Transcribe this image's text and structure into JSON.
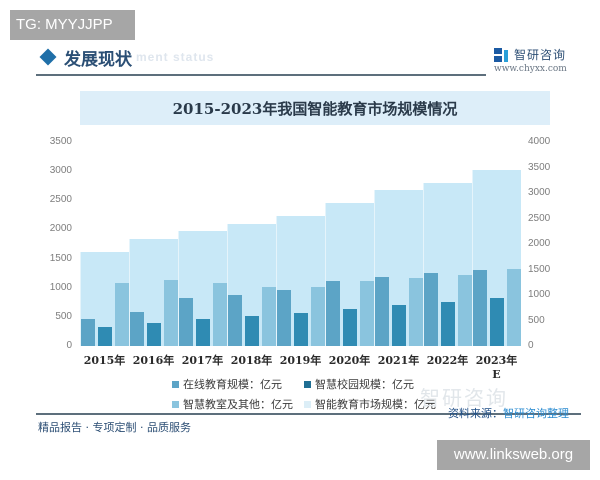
{
  "badges": {
    "top_left": "TG: MYYJJPP",
    "bottom_right": "www.linksweb.org"
  },
  "header": {
    "title": "发展现状",
    "subtitle": "ment status",
    "brand_name": "智研咨询",
    "brand_url": "www.chyxx.com"
  },
  "footer": {
    "tagline": "精品报告 · 专项定制 · 品质服务",
    "source_label": "资料来源：",
    "source_value": "智研咨询整理",
    "watermark": "智研咨询"
  },
  "colors": {
    "online": "#5ca4c6",
    "campus": "#2f8bb3",
    "classroom": "#8ac4de",
    "market": "#c8e8f7",
    "title_bar": "#ddeef9"
  },
  "chart_data": {
    "type": "bar",
    "title": "2015-2023年我国智能教育市场规模情况",
    "xlabel": "",
    "ylabel": "亿元",
    "categories": [
      "2015年",
      "2016年",
      "2017年",
      "2018年",
      "2019年",
      "2020年",
      "2021年",
      "2022年",
      "2023年E"
    ],
    "ylim_left": [
      0,
      3500
    ],
    "yticks_left": [
      0,
      500,
      1000,
      1500,
      2000,
      2500,
      3000,
      3500
    ],
    "ylim_right": [
      0,
      4000
    ],
    "yticks_right": [
      0,
      500,
      1000,
      1500,
      2000,
      2500,
      3000,
      3500,
      4000
    ],
    "grid": false,
    "legend_position": "bottom",
    "series": [
      {
        "name": "在线教育规模：亿元",
        "axis": "left",
        "values": [
          470,
          580,
          820,
          880,
          960,
          1120,
          1180,
          1250,
          1300
        ]
      },
      {
        "name": "智慧校园规模：亿元",
        "axis": "left",
        "values": [
          330,
          400,
          460,
          520,
          560,
          640,
          700,
          760,
          820
        ]
      },
      {
        "name": "智慧教室及其他：亿元",
        "axis": "left",
        "values": [
          1080,
          1130,
          1080,
          1010,
          1010,
          1110,
          1160,
          1220,
          1320
        ]
      },
      {
        "name": "智能教育市场规模：亿元",
        "axis": "right",
        "values": [
          1850,
          2100,
          2250,
          2400,
          2550,
          2800,
          3050,
          3200,
          3450
        ]
      }
    ]
  }
}
